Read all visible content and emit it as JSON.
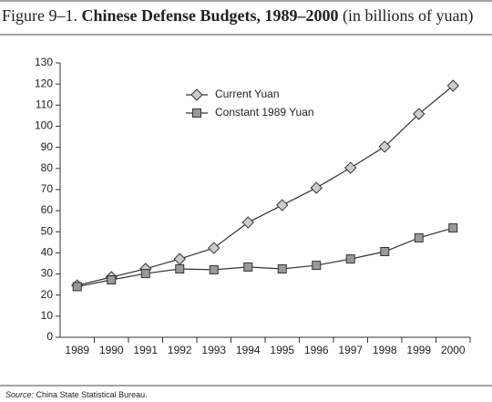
{
  "chart_data": {
    "type": "line",
    "title_label": "Figure 9–1.",
    "title": "Chinese Defense Budgets, 1989–2000",
    "subtitle": "(in billions of yuan)",
    "categories": [
      "1989",
      "1990",
      "1991",
      "1992",
      "1993",
      "1994",
      "1995",
      "1996",
      "1997",
      "1998",
      "1999",
      "2000"
    ],
    "series": [
      {
        "name": "Current Yuan",
        "color": "#cccccc",
        "marker": "diamond",
        "values": [
          24.6,
          28.5,
          32.4,
          37.1,
          42.3,
          54.4,
          62.6,
          70.8,
          80.3,
          90.3,
          105.8,
          119.2
        ]
      },
      {
        "name": "Constant 1989 Yuan",
        "color": "#999999",
        "marker": "square",
        "values": [
          24,
          27.2,
          30.2,
          32.4,
          32,
          33.3,
          32.4,
          34.1,
          37.1,
          40.6,
          47.1,
          51.8
        ]
      }
    ],
    "ylim": [
      0,
      130
    ],
    "yticks": [
      0,
      10,
      20,
      30,
      40,
      50,
      60,
      70,
      80,
      90,
      100,
      110,
      120,
      130
    ],
    "source_label": "Source:",
    "source": "China State Statistical Bureau."
  }
}
